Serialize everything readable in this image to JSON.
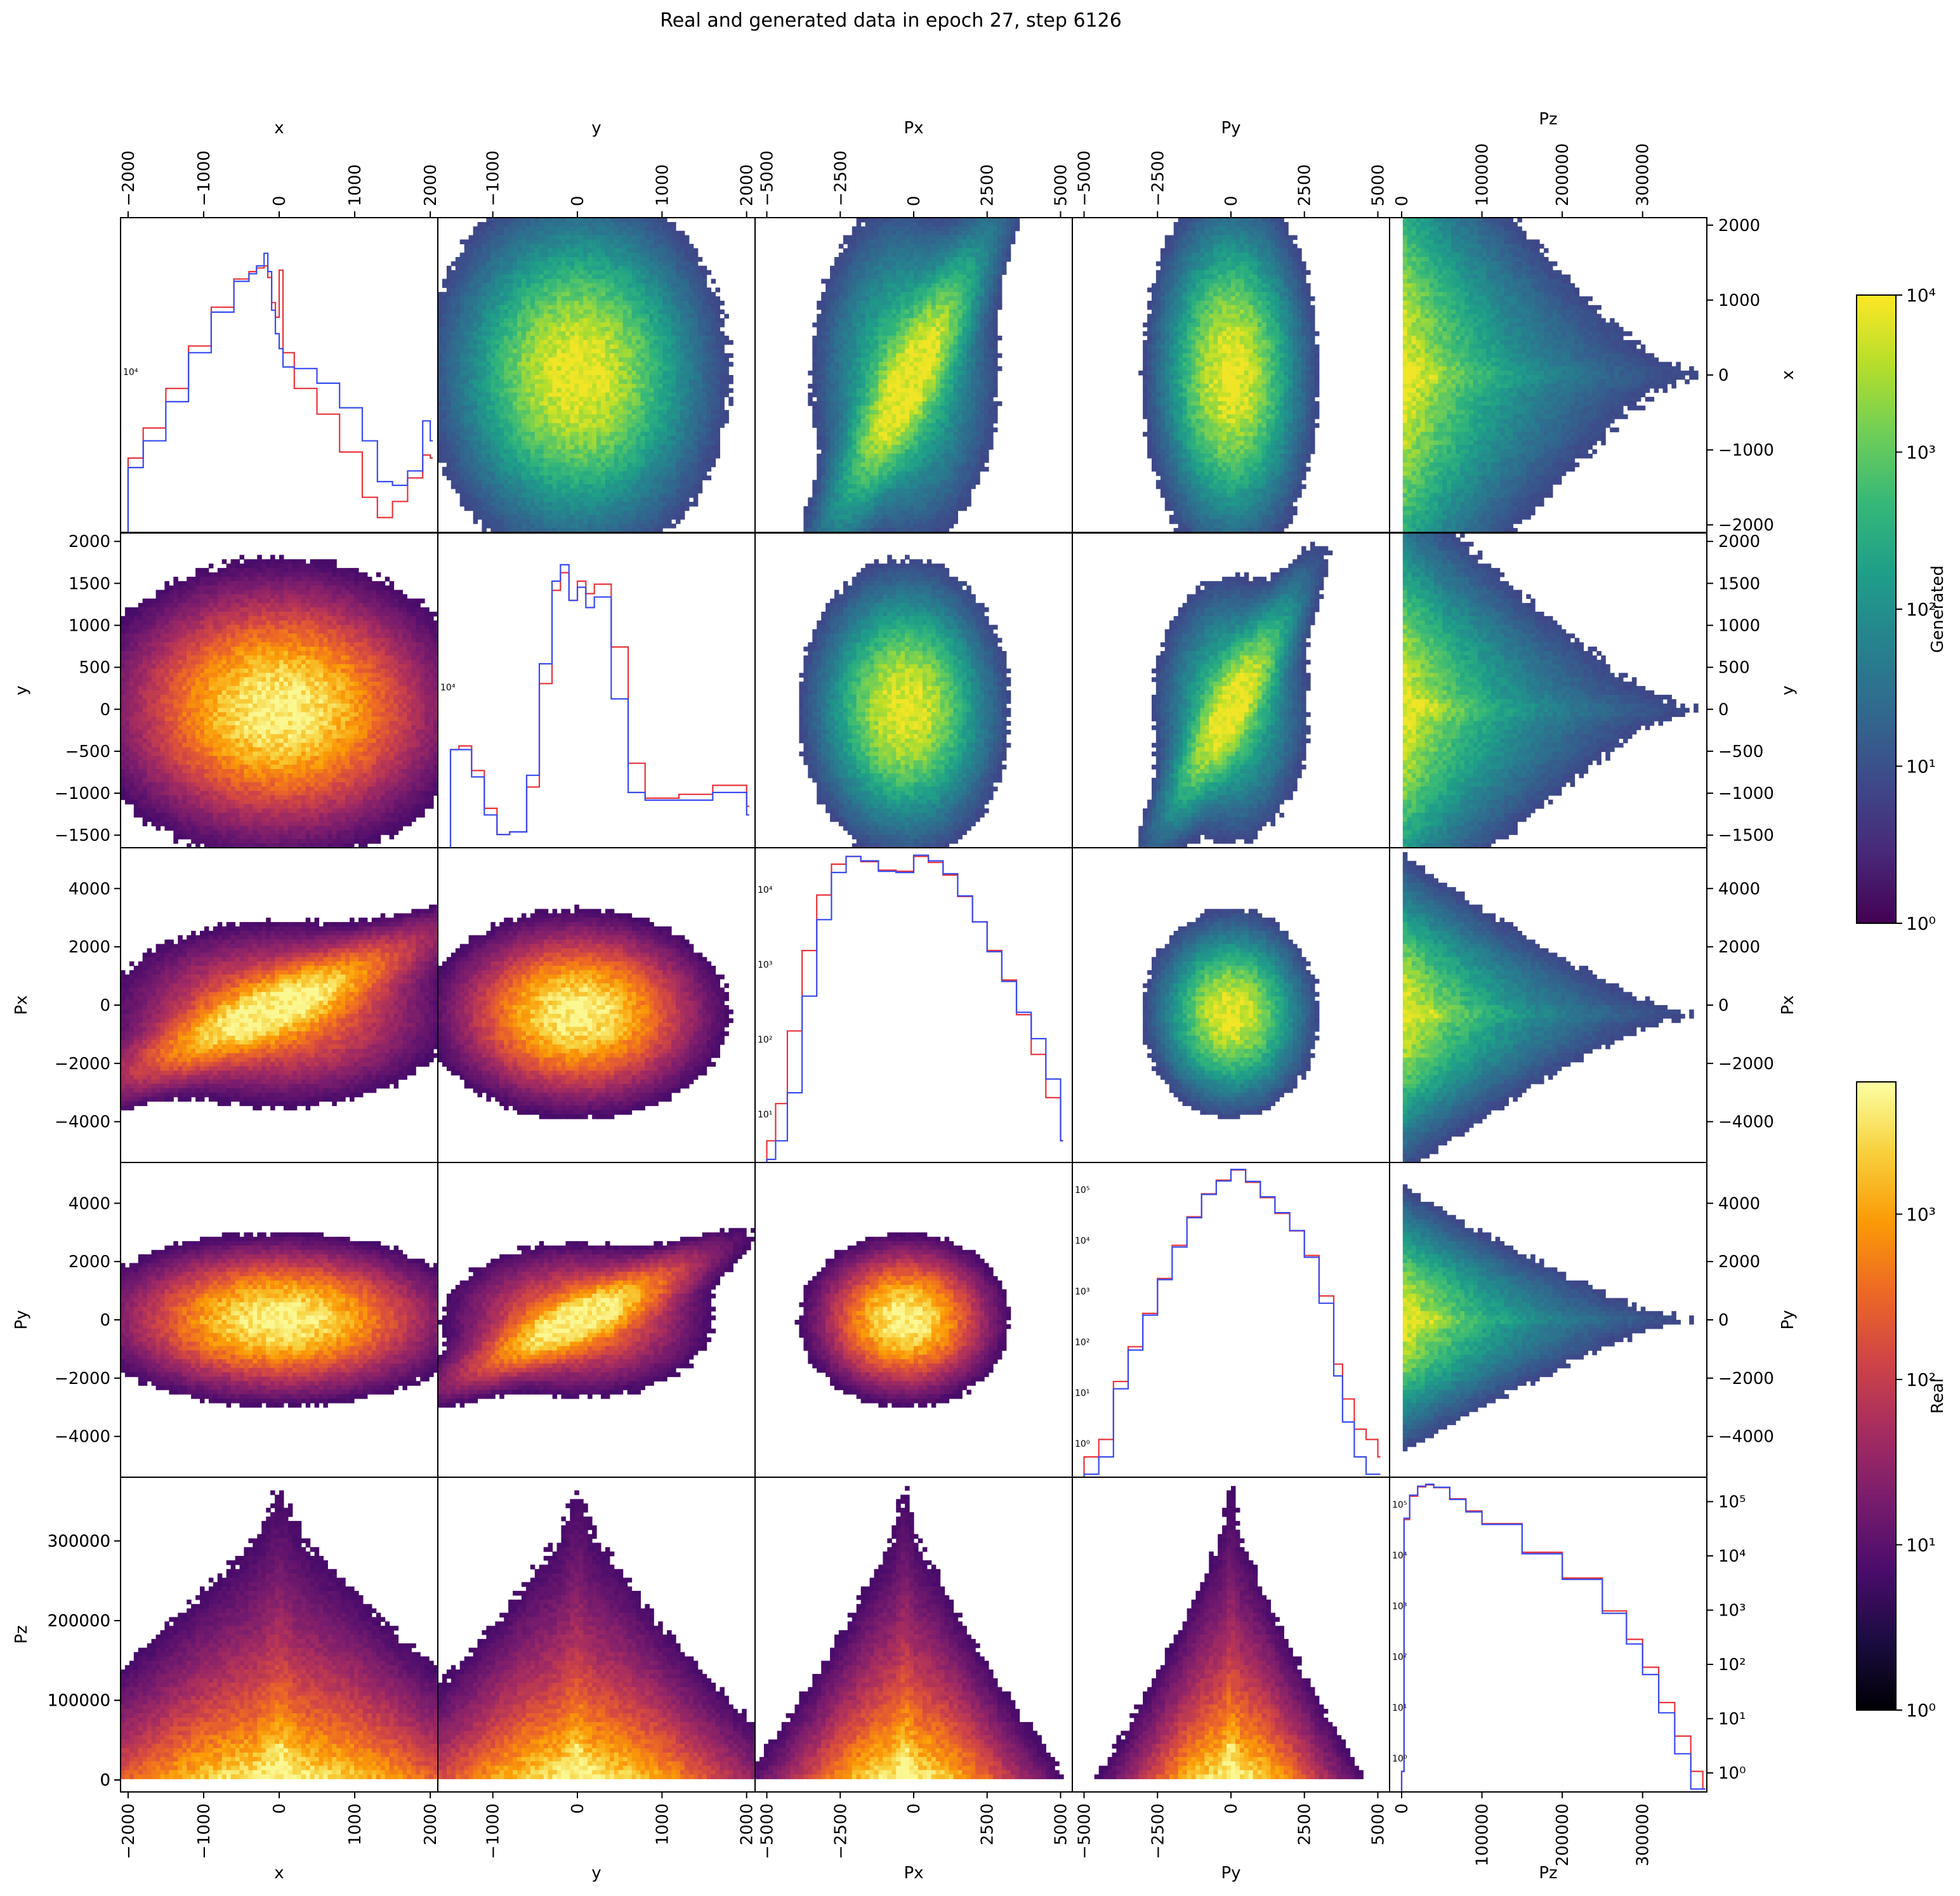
{
  "title": "Real and generated data in epoch 27, step 6126",
  "variables": [
    "x",
    "y",
    "Px",
    "Py",
    "Pz"
  ],
  "colors": {
    "real_hist": "#e8333a",
    "generated_hist": "#3a4bef",
    "frame": "#000000",
    "background": "#ffffff"
  },
  "colorbars": {
    "generated": {
      "label": "Generated",
      "colormap": "viridis",
      "scale": "log",
      "ticks": [
        "10⁰",
        "10¹",
        "10²",
        "10³",
        "10⁴"
      ]
    },
    "real": {
      "label": "Real",
      "colormap": "inferno",
      "scale": "log",
      "ticks": [
        "10⁰",
        "10¹",
        "10²",
        "10³"
      ]
    }
  },
  "chart_data": {
    "type": "pairplot",
    "title": "Real and generated data in epoch 27, step 6126",
    "layout": "5x5 corner matrix; diagonal = 1D histograms (log y), upper triangle = Generated 2D histograms (viridis, log), lower triangle = Real 2D histograms (inferno, log)",
    "legend_placement": "colorbars at right",
    "grid": false,
    "axes": {
      "x": {
        "range": [
          -2100,
          2100
        ],
        "ticks": [
          -2000,
          -1000,
          0,
          1000,
          2000
        ],
        "tick_labels": [
          "−2000",
          "−1000",
          "0",
          "1000",
          "2000"
        ]
      },
      "y": {
        "range": [
          -1650,
          2100
        ],
        "ticks": [
          -1000,
          0,
          1000,
          2000
        ],
        "tick_labels": [
          "−1000",
          "0",
          "1000",
          "2000"
        ],
        "row_ticks": [
          -1500,
          -1000,
          -500,
          0,
          500,
          1000,
          1500,
          2000
        ],
        "row_tick_labels": [
          "−1500",
          "−1000",
          "−500",
          "0",
          "500",
          "1000",
          "1500",
          "2000"
        ]
      },
      "Px": {
        "range": [
          -5400,
          5400
        ],
        "ticks": [
          -5000,
          -2500,
          0,
          2500,
          5000
        ],
        "tick_labels": [
          "−5000",
          "−2500",
          "0",
          "2500",
          "5000"
        ],
        "row_ticks": [
          -4000,
          -2000,
          0,
          2000,
          4000
        ],
        "row_tick_labels": [
          "−4000",
          "−2000",
          "0",
          "2000",
          "4000"
        ]
      },
      "Py": {
        "range": [
          -5400,
          5400
        ],
        "ticks": [
          -5000,
          -2500,
          0,
          2500,
          5000
        ],
        "tick_labels": [
          "−5000",
          "−2500",
          "0",
          "2500",
          "5000"
        ],
        "row_ticks": [
          -4000,
          -2000,
          0,
          2000,
          4000
        ],
        "row_tick_labels": [
          "−4000",
          "−2000",
          "0",
          "2000",
          "4000"
        ]
      },
      "Pz": {
        "range": [
          -15000,
          380000
        ],
        "ticks": [
          0,
          100000,
          200000,
          300000
        ],
        "tick_labels": [
          "0",
          "100000",
          "200000",
          "300000"
        ]
      }
    },
    "diagonal_histograms": [
      {
        "var": "x",
        "scale": "log",
        "ytick_labels": [
          "10⁴"
        ],
        "series": [
          {
            "name": "Real",
            "x": [
              -2000,
              -1800,
              -1500,
              -1200,
              -900,
              -600,
              -400,
              -300,
              -200,
              -150,
              -100,
              -50,
              0,
              50,
              200,
              500,
              800,
              1100,
              1300,
              1500,
              1700,
              1900,
              2000
            ],
            "y": [
              4200,
              5300,
              7200,
              10000,
              13500,
              16800,
              17800,
              18300,
              18600,
              17000,
              14000,
              12500,
              18000,
              9500,
              7200,
              5900,
              4400,
              3100,
              2650,
              3000,
              3600,
              4300,
              4200
            ]
          },
          {
            "name": "Generated",
            "x": [
              -2000,
              -1800,
              -1500,
              -1200,
              -900,
              -600,
              -400,
              -300,
              -200,
              -150,
              -100,
              -50,
              0,
              50,
              200,
              500,
              800,
              1100,
              1300,
              1500,
              1700,
              1900,
              2000
            ],
            "y": [
              3900,
              4800,
              6500,
              9500,
              13000,
              16500,
              17500,
              18600,
              20500,
              17800,
              13200,
              11000,
              9800,
              8500,
              8400,
              7500,
              6200,
              4800,
              3500,
              3400,
              3800,
              5600,
              4800
            ]
          }
        ]
      },
      {
        "var": "y",
        "scale": "log",
        "ytick_labels": [
          "10⁴"
        ],
        "series": [
          {
            "name": "Real",
            "x": [
              -1500,
              -1400,
              -1250,
              -1100,
              -950,
              -800,
              -600,
              -450,
              -300,
              -200,
              -100,
              0,
              100,
              200,
              400,
              600,
              800,
              1200,
              1600,
              2000
            ],
            "y": [
              9000,
              9300,
              7500,
              5400,
              4300,
              4400,
              6500,
              16000,
              36000,
              42000,
              33000,
              39000,
              35000,
              38000,
              22000,
              8000,
              5900,
              6100,
              6600,
              5500
            ]
          },
          {
            "name": "Generated",
            "x": [
              -1500,
              -1400,
              -1250,
              -1100,
              -950,
              -800,
              -600,
              -450,
              -300,
              -200,
              -100,
              0,
              100,
              200,
              400,
              600,
              800,
              1200,
              1600,
              2000
            ],
            "y": [
              9000,
              9000,
              7100,
              5100,
              4300,
              4400,
              7200,
              19000,
              39000,
              45000,
              33000,
              37000,
              31000,
              34000,
              14000,
              6200,
              5800,
              5800,
              6200,
              5100
            ]
          }
        ]
      },
      {
        "var": "Px",
        "scale": "log",
        "ytick_labels": [
          "10¹",
          "10²",
          "10³",
          "10⁴"
        ],
        "series": [
          {
            "name": "Real",
            "x": [
              -5000,
              -4700,
              -4300,
              -3800,
              -3300,
              -2800,
              -2300,
              -1800,
              -1200,
              -600,
              0,
              500,
              1000,
              1500,
              2000,
              2500,
              3000,
              3500,
              4000,
              4500,
              5000
            ],
            "y": [
              1,
              4,
              60,
              1200,
              9500,
              30000,
              40000,
              33000,
              24000,
              23000,
              40000,
              32000,
              20000,
              9000,
              3500,
              1200,
              400,
              110,
              25,
              5,
              1
            ]
          },
          {
            "name": "Generated",
            "x": [
              -5000,
              -4700,
              -4300,
              -3800,
              -3300,
              -2800,
              -2300,
              -1800,
              -1200,
              -600,
              0,
              500,
              1000,
              1500,
              2000,
              2500,
              3000,
              3500,
              4000,
              4500,
              5000
            ],
            "y": [
              0.5,
              1,
              6,
              220,
              3800,
              22000,
              40000,
              34000,
              23000,
              22000,
              42000,
              34000,
              21000,
              9200,
              3500,
              1150,
              380,
              120,
              45,
              10,
              1
            ]
          }
        ]
      },
      {
        "var": "Py",
        "scale": "log",
        "ytick_labels": [
          "10⁰",
          "10¹",
          "10²",
          "10³",
          "10⁴",
          "10⁵"
        ],
        "series": [
          {
            "name": "Real",
            "x": [
              -5000,
              -4500,
              -4000,
              -3500,
              -3000,
              -2500,
              -2000,
              -1500,
              -1000,
              -500,
              0,
              500,
              1000,
              1500,
              2000,
              2500,
              3000,
              3500,
              3800,
              4200,
              4600,
              5000
            ],
            "y": [
              1,
              2,
              20,
              80,
              300,
              1200,
              4500,
              14000,
              35000,
              60000,
              90000,
              55000,
              30000,
              16000,
              8000,
              3000,
              600,
              40,
              10,
              3,
              2,
              1
            ]
          },
          {
            "name": "Generated",
            "x": [
              -5000,
              -4500,
              -4000,
              -3500,
              -3000,
              -2500,
              -2000,
              -1500,
              -1000,
              -500,
              0,
              500,
              1000,
              1500,
              2000,
              2500,
              3000,
              3500,
              3800,
              4200,
              4600,
              5000
            ],
            "y": [
              0.5,
              1,
              15,
              70,
              280,
              1150,
              4200,
              13500,
              34000,
              58000,
              92000,
              57000,
              31000,
              16500,
              8100,
              2800,
              450,
              25,
              4,
              1,
              0.5,
              0.5
            ]
          }
        ]
      },
      {
        "var": "Pz",
        "scale": "log",
        "ytick_labels": [
          "10⁰",
          "10¹",
          "10²",
          "10³",
          "10⁴",
          "10⁵"
        ],
        "series": [
          {
            "name": "Real",
            "x": [
              0,
              3000,
              10000,
              20000,
              30000,
              40000,
              60000,
              80000,
              100000,
              150000,
              200000,
              250000,
              280000,
              300000,
              320000,
              340000,
              360000,
              375000
            ],
            "y": [
              1,
              20000,
              50000,
              72000,
              78000,
              70000,
              45000,
              28000,
              17000,
              5500,
              2000,
              550,
              180,
              60,
              15,
              4,
              1,
              0.5
            ]
          },
          {
            "name": "Generated",
            "x": [
              0,
              3000,
              10000,
              20000,
              30000,
              40000,
              60000,
              80000,
              100000,
              150000,
              200000,
              250000,
              280000,
              300000,
              320000,
              340000,
              360000,
              375000
            ],
            "y": [
              1,
              21000,
              52000,
              74000,
              80000,
              71000,
              44000,
              27000,
              16500,
              5200,
              1900,
              500,
              150,
              45,
              10,
              2,
              0.5,
              0.5
            ]
          }
        ]
      }
    ]
  }
}
